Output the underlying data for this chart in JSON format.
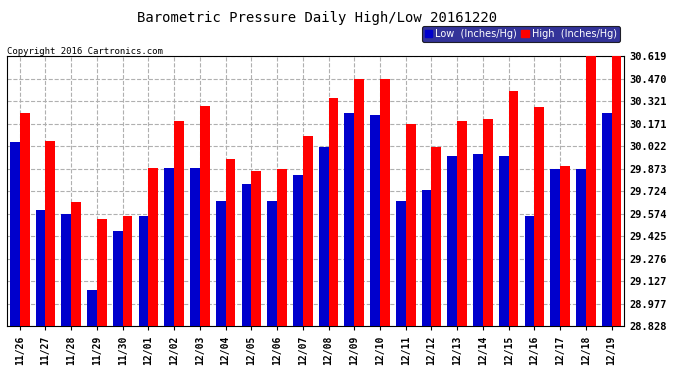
{
  "title": "Barometric Pressure Daily High/Low 20161220",
  "copyright": "Copyright 2016 Cartronics.com",
  "dates": [
    "11/26",
    "11/27",
    "11/28",
    "11/29",
    "11/30",
    "12/01",
    "12/02",
    "12/03",
    "12/04",
    "12/05",
    "12/06",
    "12/07",
    "12/08",
    "12/09",
    "12/10",
    "12/11",
    "12/12",
    "12/13",
    "12/14",
    "12/15",
    "12/16",
    "12/17",
    "12/18",
    "12/19"
  ],
  "low": [
    30.05,
    29.6,
    29.57,
    29.07,
    29.46,
    29.56,
    29.88,
    29.88,
    29.66,
    29.77,
    29.66,
    29.83,
    30.02,
    30.24,
    30.23,
    29.66,
    29.73,
    29.96,
    29.97,
    29.96,
    29.56,
    29.87,
    29.87,
    30.24
  ],
  "high": [
    30.24,
    30.06,
    29.65,
    29.54,
    29.56,
    29.88,
    30.19,
    30.29,
    29.94,
    29.86,
    29.87,
    30.09,
    30.34,
    30.47,
    30.47,
    30.17,
    30.02,
    30.19,
    30.2,
    30.39,
    30.28,
    29.89,
    30.62,
    30.62
  ],
  "ymin": 28.828,
  "ymax": 30.619,
  "yticks": [
    28.828,
    28.977,
    29.127,
    29.276,
    29.425,
    29.574,
    29.724,
    29.873,
    30.022,
    30.171,
    30.321,
    30.47,
    30.619
  ],
  "low_color": "#0000cc",
  "high_color": "#ff0000",
  "bg_color": "#ffffff",
  "grid_color": "#b0b0b0",
  "bar_width": 0.38,
  "legend_low_label": "Low  (Inches/Hg)",
  "legend_high_label": "High  (Inches/Hg)"
}
